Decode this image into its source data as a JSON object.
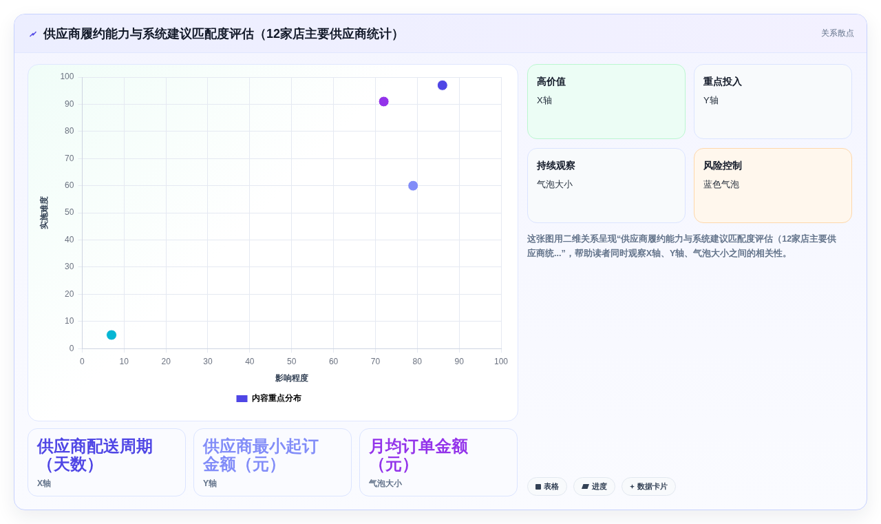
{
  "chart_data": {
    "type": "bubble",
    "title": "供应商履约能力与系统建议匹配度评估（12家店主要供应商统计）",
    "xlabel": "影响程度",
    "ylabel": "实施难度",
    "series": [
      {
        "name": "内容重点分布",
        "color": "#4f46e5",
        "colors": [
          "#06b6d4",
          "#9333ea",
          "#818cf8",
          "#4f46e5"
        ],
        "x": [
          7,
          72,
          79,
          86
        ],
        "values": [
          5,
          91,
          60,
          97
        ],
        "sizes": [
          1,
          1,
          1,
          1
        ]
      }
    ],
    "xlim": [
      0,
      100
    ],
    "xticks": [
      0,
      10,
      20,
      30,
      40,
      50,
      60,
      70,
      80,
      90,
      100
    ],
    "ylim": [
      0,
      100
    ],
    "yticks": [
      0,
      10,
      20,
      30,
      40,
      50,
      60,
      70,
      80,
      90,
      100
    ],
    "grid": true,
    "legend": "bottom",
    "annotations": [
      "关系散点",
      "高价值",
      "X轴",
      "重点投入",
      "Y轴",
      "持续观察",
      "气泡大小",
      "风险控制",
      "蓝色气泡",
      "这张图用二维关系呈现“供应商履约能力与系统建议匹配度评估（12家店主要供应商统...”，帮助读者同时观察X轴、Y轴、气泡大小之间的相关性。",
      "供应商配送周期（天数）",
      "X轴",
      "供应商最小起订金额（元）",
      "Y轴",
      "月均订单金额（元）",
      "气泡大小",
      "表格",
      "进度",
      "数据卡片"
    ]
  }
}
